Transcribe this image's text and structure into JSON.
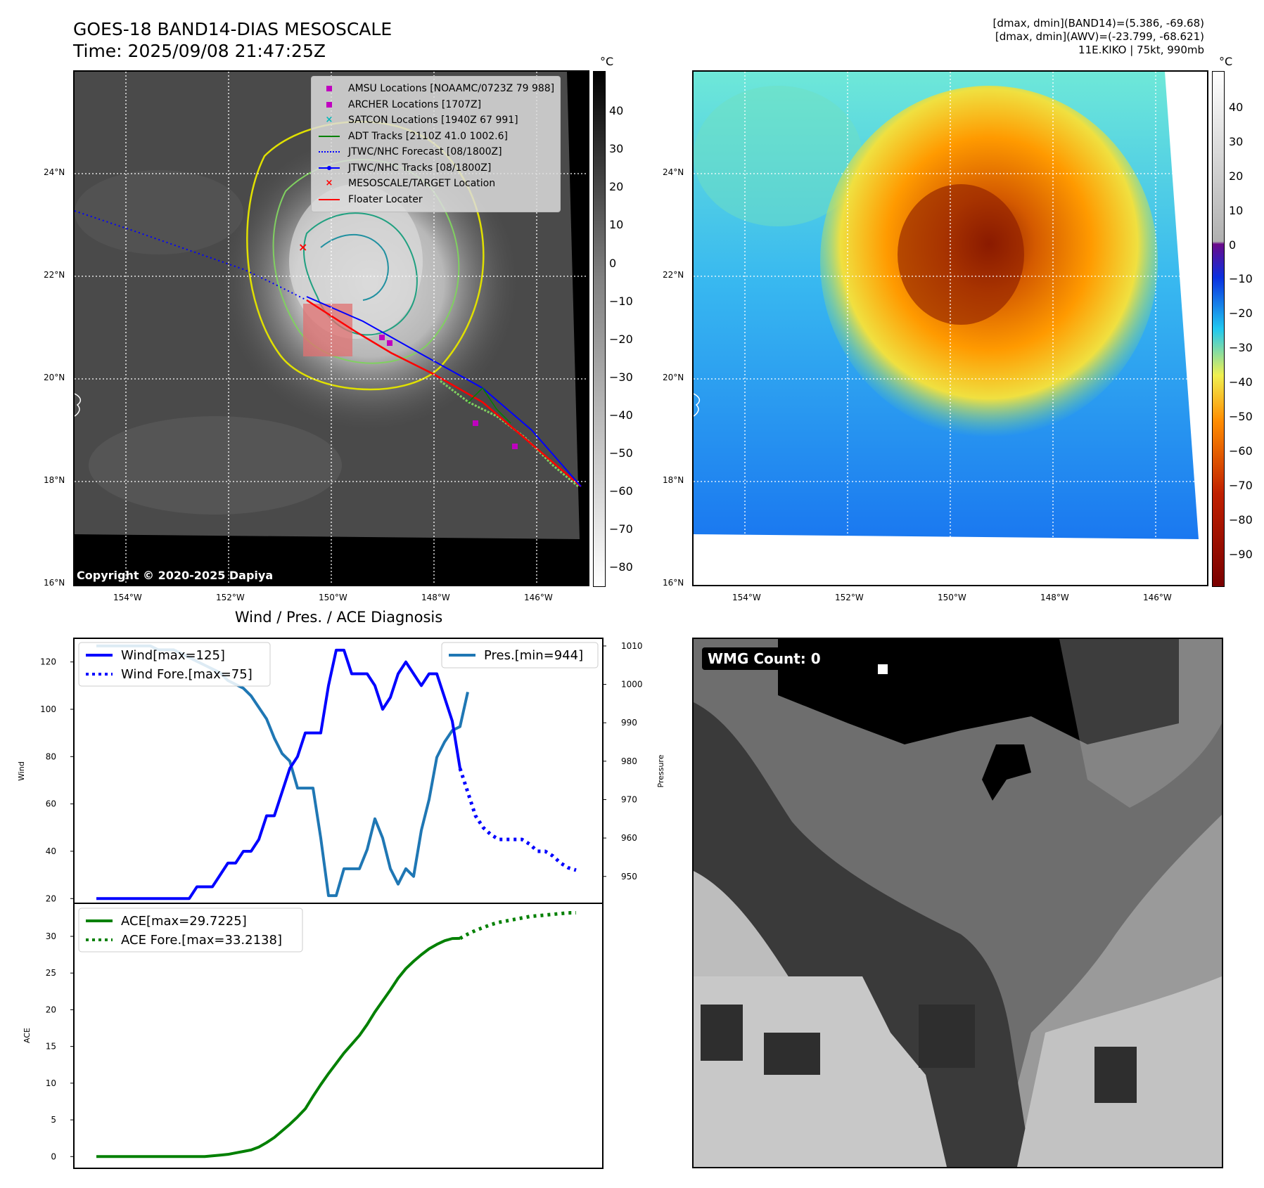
{
  "header": {
    "title_line1": "GOES-18 BAND14-DIAS MESOSCALE",
    "title_line2": "Time: 2025/09/08 21:47:25Z",
    "stat_line1": "[dmax, dmin](BAND14)=(5.386, -69.68)",
    "stat_line2": "[dmax, dmin](AWV)=(-23.799, -68.621)",
    "stat_line3": "11E.KIKO | 75kt, 990mb"
  },
  "map": {
    "lat_ticks": [
      "24°N",
      "22°N",
      "20°N",
      "18°N",
      "16°N"
    ],
    "lon_ticks": [
      "154°W",
      "152°W",
      "150°W",
      "148°W",
      "146°W"
    ],
    "copyright": "Copyright © 2020-2025 Dapiya",
    "legend": [
      {
        "label": "AMSU Locations [NOAAMC/0723Z 79 988]",
        "color": "#c000c0",
        "marker": "square"
      },
      {
        "label": "ARCHER Locations [1707Z]",
        "color": "#c000c0",
        "marker": "square"
      },
      {
        "label": "SATCON Locations [1940Z 67 991]",
        "color": "#00b8b8",
        "marker": "x"
      },
      {
        "label": "ADT Tracks [2110Z 41.0 1002.6]",
        "color": "#008000",
        "marker": "line"
      },
      {
        "label": "JTWC/NHC Forecast [08/1800Z]",
        "color": "#0000ff",
        "marker": "dotted"
      },
      {
        "label": "JTWC/NHC Tracks [08/1800Z]",
        "color": "#0000ff",
        "marker": "line-dot"
      },
      {
        "label": "MESOSCALE/TARGET Location",
        "color": "#ff0000",
        "marker": "x"
      },
      {
        "label": "Floater Locater",
        "color": "#ff0000",
        "marker": "line"
      }
    ]
  },
  "colorbar_gray": {
    "unit": "°C",
    "ticks": [
      "40",
      "30",
      "20",
      "10",
      "0",
      "−10",
      "−20",
      "−30",
      "−40",
      "−50",
      "−60",
      "−70",
      "−80"
    ]
  },
  "colorbar_color": {
    "unit": "°C",
    "ticks": [
      "40",
      "30",
      "20",
      "10",
      "0",
      "−10",
      "−20",
      "−30",
      "−40",
      "−50",
      "−60",
      "−70",
      "−80",
      "−90"
    ]
  },
  "diagnosis": {
    "title": "Wind / Pres. / ACE Diagnosis",
    "wind_axis_label": "Wind",
    "pressure_axis_label": "Pressure",
    "ace_axis_label": "ACE",
    "wind_legend": "Wind[max=125]",
    "wind_fore_legend": "Wind Fore.[max=75]",
    "pres_legend": "Pres.[min=944]",
    "ace_legend": "ACE[max=29.7225]",
    "ace_fore_legend": "ACE Fore.[max=33.2138]"
  },
  "wmg": {
    "label": "WMG Count: 0"
  },
  "colors": {
    "wind": "#0000ff",
    "pressure": "#1f77b4",
    "ace": "#008000",
    "track_red": "#ff0000"
  },
  "chart_data": [
    {
      "type": "line",
      "title": "Wind / Pres. / ACE Diagnosis",
      "ylabel": "Wind",
      "ylim": [
        18,
        130
      ],
      "series": [
        {
          "name": "Wind[max=125]",
          "x": [
            0,
            1,
            2,
            3,
            4,
            5,
            6,
            7,
            8,
            9,
            10,
            11,
            12,
            13,
            14,
            15,
            16,
            17,
            18,
            19,
            20,
            21,
            22,
            23,
            24,
            25,
            26,
            27,
            28,
            29,
            30,
            31,
            32,
            33,
            34,
            35,
            36,
            37,
            38,
            39,
            40,
            41,
            42,
            43,
            44,
            45,
            46,
            47
          ],
          "values": [
            20,
            20,
            20,
            20,
            20,
            20,
            20,
            20,
            20,
            20,
            20,
            20,
            20,
            25,
            25,
            25,
            30,
            35,
            35,
            40,
            40,
            45,
            55,
            55,
            65,
            75,
            80,
            90,
            90,
            90,
            110,
            125,
            125,
            115,
            115,
            115,
            110,
            100,
            105,
            115,
            120,
            115,
            110,
            115,
            115,
            105,
            95,
            75
          ]
        },
        {
          "name": "Wind Fore.[max=75]",
          "x": [
            47,
            48,
            49,
            50,
            51,
            52,
            53,
            54,
            55,
            56,
            57,
            58,
            59,
            60,
            61,
            62
          ],
          "style": "dotted",
          "values": [
            75,
            65,
            55,
            50,
            47,
            45,
            45,
            45,
            45,
            43,
            40,
            40,
            38,
            35,
            33,
            32
          ]
        }
      ]
    },
    {
      "type": "line",
      "ylabel": "Pressure",
      "ylim": [
        943,
        1012
      ],
      "series": [
        {
          "name": "Pres.[min=944]",
          "x": [
            0,
            1,
            2,
            3,
            4,
            5,
            6,
            7,
            8,
            9,
            10,
            11,
            12,
            13,
            14,
            15,
            16,
            17,
            18,
            19,
            20,
            21,
            22,
            23,
            24,
            25,
            26,
            27,
            28,
            29,
            30,
            31,
            32,
            33,
            34,
            35,
            36,
            37,
            38,
            39,
            40,
            41,
            42,
            43,
            44,
            45,
            46,
            47,
            48
          ],
          "values": [
            1010,
            1010,
            1010,
            1010,
            1010,
            1010,
            1010,
            1010,
            1009,
            1009,
            1009,
            1008,
            1007,
            1006,
            1005,
            1004,
            1003,
            1001,
            1000,
            999,
            997,
            994,
            991,
            986,
            982,
            980,
            973,
            973,
            973,
            960,
            945,
            945,
            952,
            952,
            952,
            957,
            965,
            960,
            952,
            948,
            952,
            950,
            962,
            970,
            981,
            985,
            988,
            989,
            998
          ]
        }
      ]
    },
    {
      "type": "line",
      "ylabel": "ACE",
      "ylim": [
        -1.6,
        34.5
      ],
      "series": [
        {
          "name": "ACE[max=29.7225]",
          "x": [
            0,
            1,
            2,
            3,
            4,
            5,
            6,
            7,
            8,
            9,
            10,
            11,
            12,
            13,
            14,
            15,
            16,
            17,
            18,
            19,
            20,
            21,
            22,
            23,
            24,
            25,
            26,
            27,
            28,
            29,
            30,
            31,
            32,
            33,
            34,
            35,
            36,
            37,
            38,
            39,
            40,
            41,
            42,
            43,
            44,
            45,
            46,
            47
          ],
          "values": [
            0,
            0,
            0,
            0,
            0,
            0,
            0,
            0,
            0,
            0,
            0,
            0,
            0,
            0,
            0,
            0.1,
            0.2,
            0.3,
            0.5,
            0.7,
            0.9,
            1.3,
            1.9,
            2.6,
            3.5,
            4.4,
            5.4,
            6.5,
            8.2,
            9.8,
            11.3,
            12.7,
            14.1,
            15.3,
            16.5,
            18,
            19.7,
            21.2,
            22.7,
            24.3,
            25.6,
            26.6,
            27.5,
            28.3,
            28.9,
            29.4,
            29.7,
            29.72
          ]
        },
        {
          "name": "ACE Fore.[max=33.2138]",
          "x": [
            47,
            48,
            49,
            50,
            51,
            52,
            53,
            54,
            55,
            56,
            57,
            58,
            59,
            60,
            61,
            62
          ],
          "style": "dotted",
          "values": [
            29.72,
            30.3,
            30.8,
            31.2,
            31.6,
            31.9,
            32.1,
            32.3,
            32.5,
            32.7,
            32.8,
            32.9,
            33.0,
            33.1,
            33.2,
            33.21
          ]
        }
      ]
    }
  ]
}
